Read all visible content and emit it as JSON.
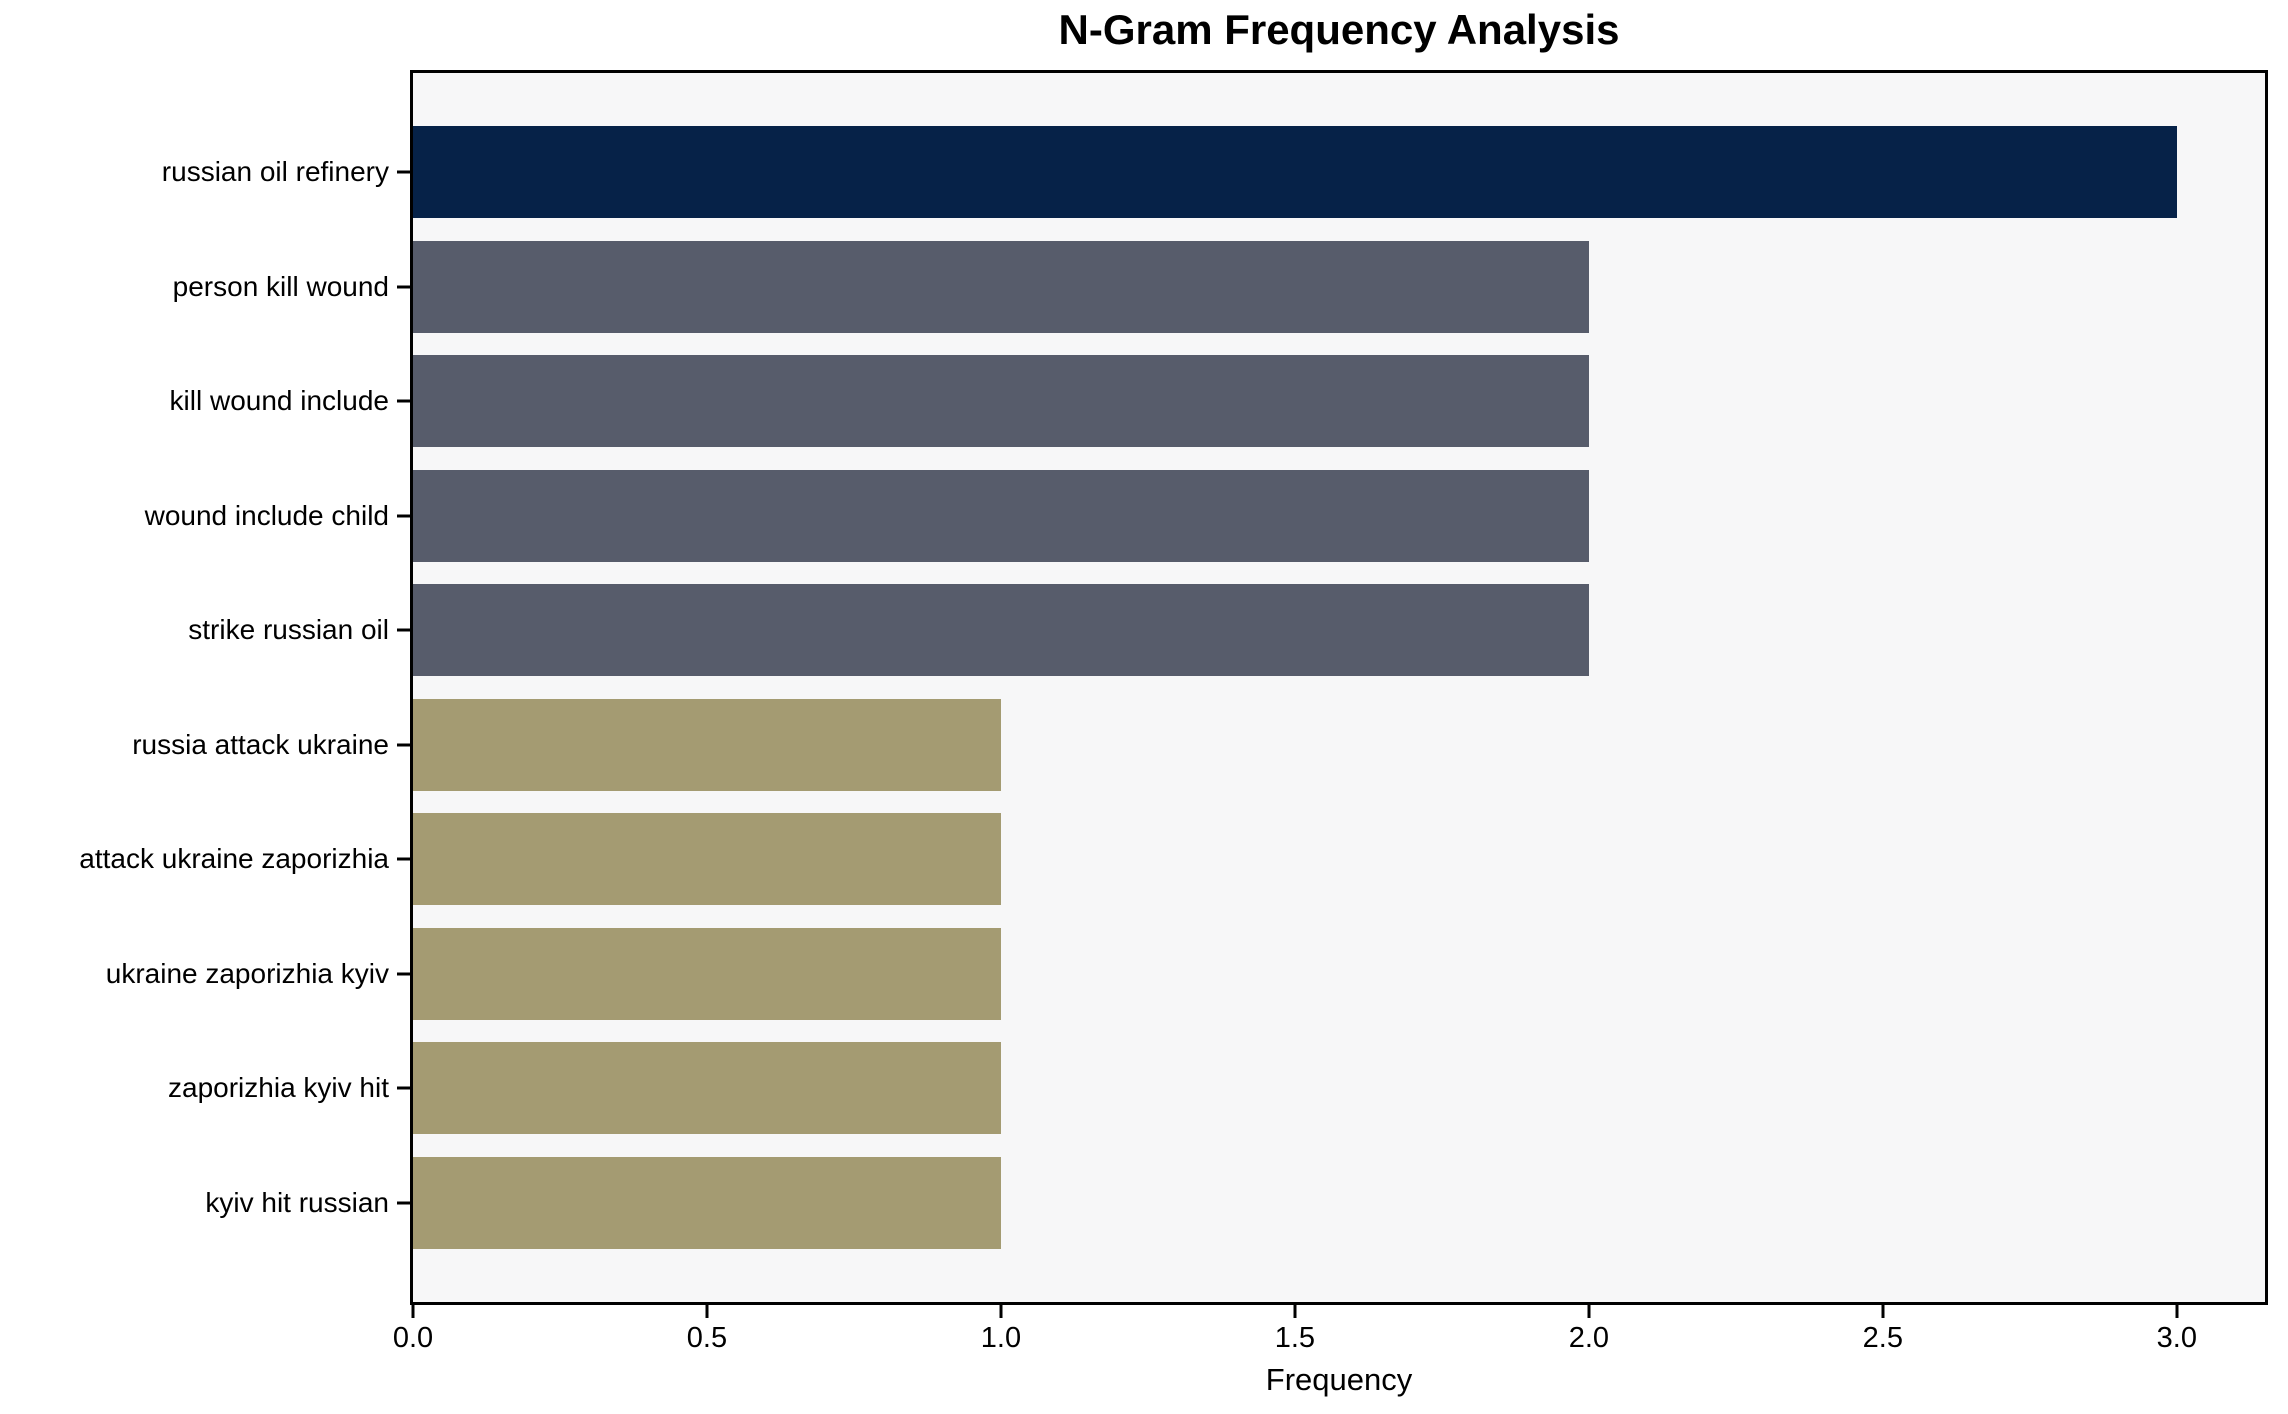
{
  "figure": {
    "background": "#ffffff",
    "plot_background": "#f7f7f8",
    "spine_color": "#000000",
    "text_color": "#000000"
  },
  "chart_data": {
    "type": "bar",
    "orientation": "horizontal",
    "title": "N-Gram Frequency Analysis",
    "xlabel": "Frequency",
    "ylabel": "",
    "categories": [
      "russian oil refinery",
      "person kill wound",
      "kill wound include",
      "wound include child",
      "strike russian oil",
      "russia attack ukraine",
      "attack ukraine zaporizhia",
      "ukraine zaporizhia kyiv",
      "zaporizhia kyiv hit",
      "kyiv hit russian"
    ],
    "values": [
      3,
      2,
      2,
      2,
      2,
      1,
      1,
      1,
      1,
      1
    ],
    "bar_colors": [
      "#062248",
      "#575c6b",
      "#575c6b",
      "#575c6b",
      "#575c6b",
      "#a49b72",
      "#a49b72",
      "#a49b72",
      "#a49b72",
      "#a49b72"
    ],
    "xlim": [
      0,
      3.15
    ],
    "xticks": [
      0,
      0.5,
      1,
      1.5,
      2,
      2.5,
      3
    ],
    "xtick_labels": [
      "0.0",
      "0.5",
      "1.0",
      "1.5",
      "2.0",
      "2.5",
      "3.0"
    ],
    "grid": false,
    "legend": null
  }
}
